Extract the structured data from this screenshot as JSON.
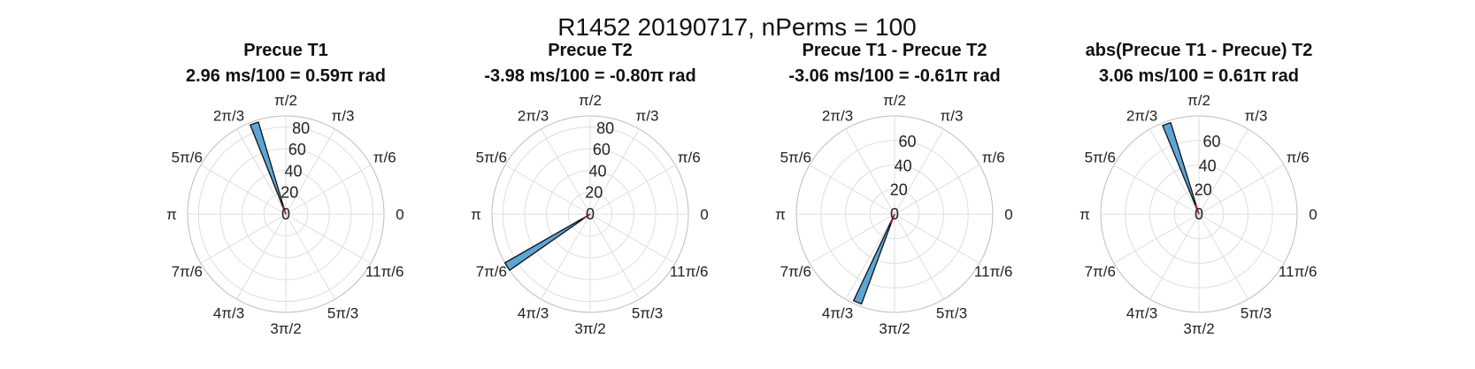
{
  "figure": {
    "suptitle": "R1452 20190717, nPerms = 100"
  },
  "chart_data": [
    {
      "type": "polar-histogram",
      "title_line1": "Precue T1",
      "title_line2": "2.96 ms/100 = 0.59π rad",
      "rlim": [
        0,
        90
      ],
      "rticks": [
        "80",
        "60",
        "40",
        "20",
        "0"
      ],
      "rtick_values": [
        80,
        60,
        40,
        20,
        0
      ],
      "theta_labels": [
        "0",
        "π/6",
        "π/3",
        "π/2",
        "2π/3",
        "5π/6",
        "π",
        "7π/6",
        "4π/3",
        "3π/2",
        "5π/3",
        "11π/6"
      ],
      "bars": [
        {
          "theta_start": 1.86,
          "theta_end": 1.95,
          "value": 88
        }
      ],
      "mean_angle": 1.86,
      "mean_length": 8,
      "colors": {
        "bar": "#5ca6d6",
        "mean_line": "#c8102e"
      }
    },
    {
      "type": "polar-histogram",
      "title_line1": "Precue T2",
      "title_line2": "-3.98 ms/100 = -0.80π rad",
      "rlim": [
        0,
        90
      ],
      "rticks": [
        "80",
        "60",
        "40",
        "20",
        "0"
      ],
      "rtick_values": [
        80,
        60,
        40,
        20,
        0
      ],
      "theta_labels": [
        "0",
        "π/6",
        "π/3",
        "π/2",
        "2π/3",
        "5π/6",
        "π",
        "7π/6",
        "4π/3",
        "3π/2",
        "5π/3",
        "11π/6"
      ],
      "bars": [
        {
          "theta_start": 3.66,
          "theta_end": 3.75,
          "value": 90
        }
      ],
      "mean_angle": 3.71,
      "mean_length": 8,
      "colors": {
        "bar": "#5ca6d6",
        "mean_line": "#c8102e"
      }
    },
    {
      "type": "polar-histogram",
      "title_line1": "Precue T1 - Precue T2",
      "title_line2": "-3.06 ms/100 = -0.61π rad",
      "rlim": [
        0,
        80
      ],
      "rticks": [
        "60",
        "40",
        "20",
        "0"
      ],
      "rtick_values": [
        60,
        40,
        20,
        0
      ],
      "theta_labels": [
        "0",
        "π/6",
        "π/3",
        "π/2",
        "2π/3",
        "5π/6",
        "π",
        "7π/6",
        "4π/3",
        "3π/2",
        "5π/3",
        "11π/6"
      ],
      "bars": [
        {
          "theta_start": 4.27,
          "theta_end": 4.36,
          "value": 78
        }
      ],
      "mean_angle": 4.32,
      "mean_length": 8,
      "colors": {
        "bar": "#5ca6d6",
        "mean_line": "#c8102e"
      }
    },
    {
      "type": "polar-histogram",
      "title_line1": "abs(Precue T1 - Precue) T2",
      "title_line2": "3.06 ms/100 = 0.61π rad",
      "rlim": [
        0,
        80
      ],
      "rticks": [
        "60",
        "40",
        "20",
        "0"
      ],
      "rtick_values": [
        60,
        40,
        20,
        0
      ],
      "theta_labels": [
        "0",
        "π/6",
        "π/3",
        "π/2",
        "2π/3",
        "5π/6",
        "π",
        "7π/6",
        "4π/3",
        "3π/2",
        "5π/3",
        "11π/6"
      ],
      "bars": [
        {
          "theta_start": 1.87,
          "theta_end": 1.96,
          "value": 78
        }
      ],
      "mean_angle": 1.92,
      "mean_length": 8,
      "colors": {
        "bar": "#5ca6d6",
        "mean_line": "#c8102e"
      }
    }
  ]
}
